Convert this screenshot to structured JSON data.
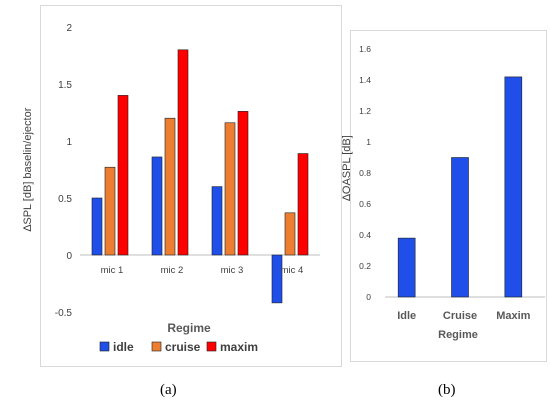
{
  "charts": {
    "a": {
      "caption": "(a)",
      "ylabel_delta": "∆",
      "ylabel_rest": "SPL [dB] baselin/ejector",
      "xlabel": "Regime",
      "ytick_labels": [
        "-0.5",
        "0",
        "0.5",
        "1",
        "1.5",
        "2"
      ]
    },
    "b": {
      "caption": "(b)",
      "ylabel_delta": "∆",
      "ylabel_rest": "OASPL [dB]",
      "xlabel": "Regime",
      "ytick_labels": [
        "0",
        "0.2",
        "0.4",
        "0.6",
        "0.8",
        "1",
        "1.2",
        "1.4",
        "1.6"
      ]
    }
  },
  "colors": {
    "idle": "#1f4ee8",
    "cruise": "#ed7d31",
    "maxim": "#ff0000",
    "bar_b": "#1f4ee8",
    "axis": "#bfbfbf",
    "tick_text": "#404040"
  },
  "chart_data": [
    {
      "type": "bar",
      "panel": "a",
      "categories": [
        "mic 1",
        "mic 2",
        "mic 3",
        "mic 4"
      ],
      "series": [
        {
          "name": "idle",
          "values": [
            0.5,
            0.86,
            0.6,
            -0.42
          ]
        },
        {
          "name": "cruise",
          "values": [
            0.77,
            1.2,
            1.16,
            0.37
          ]
        },
        {
          "name": "maxim",
          "values": [
            1.4,
            1.8,
            1.26,
            0.89
          ]
        }
      ],
      "xlabel": "Regime",
      "ylabel": "∆SPL [dB] baselin/ejector",
      "ylim": [
        -0.5,
        2
      ],
      "legend": "bottom",
      "grid": false
    },
    {
      "type": "bar",
      "panel": "b",
      "categories": [
        "Idle",
        "Cruise",
        "Maxim"
      ],
      "values": [
        0.38,
        0.9,
        1.42
      ],
      "xlabel": "Regime",
      "ylabel": "∆OASPL [dB]",
      "ylim": [
        0,
        1.6
      ],
      "grid": false
    }
  ]
}
